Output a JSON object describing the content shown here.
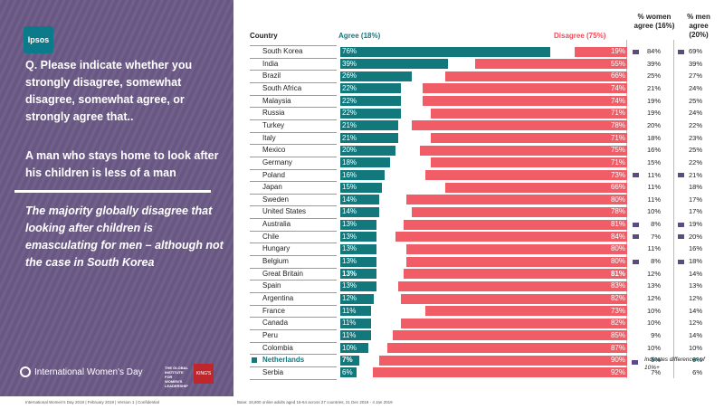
{
  "brand": {
    "logo_text": "Ipsos"
  },
  "question": "Q. Please indicate whether you strongly disagree, somewhat disagree, somewhat agree, or strongly agree that..",
  "statement": "A man who stays home to look after his children is less of a man",
  "summary": "The majority globally disagree that looking after children is emasculating for men – although not the case in South Korea",
  "iwd_label": "International Women's Day",
  "gi_logo_text": "THE GLOBAL INSTITUTE FOR WOMEN'S LEADERSHIP",
  "kings_logo_text": "KING'S",
  "footer_left": "International Women's Day 2019 | February 2019 | Version 1 | Confidential",
  "footer_base": "Base: 18,800 online adults aged 16-64 across 27 countries, 21 Dec 2018 - 4 Jan 2019",
  "note": "Indicates differences of 10%+",
  "colors": {
    "agree": "#13787c",
    "disagree": "#f05d67",
    "panel": "#6b5a86",
    "marker": "#5b4a86"
  },
  "chart_data": {
    "type": "bar",
    "title": "A man who stays home to look after his children is less of a man",
    "headers": {
      "country": "Country",
      "agree": "Agree (18%)",
      "disagree": "Disagree (75%)",
      "women": "% women agree (16%)",
      "men": "% men agree (20%)"
    },
    "categories": [
      "South Korea",
      "India",
      "Brazil",
      "South Africa",
      "Malaysia",
      "Russia",
      "Turkey",
      "Italy",
      "Mexico",
      "Germany",
      "Poland",
      "Japan",
      "Sweden",
      "United States",
      "Australia",
      "Chile",
      "Hungary",
      "Belgium",
      "Great Britain",
      "Spain",
      "Argentina",
      "France",
      "Canada",
      "Peru",
      "Colombia",
      "Netherlands",
      "Serbia"
    ],
    "agree_labels": [
      "76%",
      "39%",
      "26%",
      "22%",
      "22%",
      "22%",
      "21%",
      "21%",
      "20%",
      "18%",
      "16%",
      "15%",
      "14%",
      "14%",
      "13%",
      "13%",
      "13%",
      "13%",
      "13%",
      "13%",
      "12%",
      "11%",
      "11%",
      "11%",
      "10%",
      "7%",
      "6%"
    ],
    "disagree_labels": [
      "19%",
      "55%",
      "66%",
      "74%",
      "74%",
      "71%",
      "78%",
      "71%",
      "75%",
      "71%",
      "73%",
      "66%",
      "80%",
      "78%",
      "81%",
      "84%",
      "80%",
      "80%",
      "81%",
      "83%",
      "82%",
      "73%",
      "82%",
      "85%",
      "87%",
      "90%",
      "92%"
    ],
    "series": [
      {
        "name": "Agree",
        "values": [
          76,
          39,
          26,
          22,
          22,
          22,
          21,
          21,
          20,
          18,
          16,
          15,
          14,
          14,
          13,
          13,
          13,
          13,
          13,
          13,
          12,
          11,
          11,
          11,
          10,
          7,
          6
        ]
      },
      {
        "name": "Disagree",
        "values": [
          19,
          55,
          66,
          74,
          74,
          71,
          78,
          71,
          75,
          71,
          73,
          66,
          80,
          78,
          81,
          84,
          80,
          80,
          81,
          83,
          82,
          73,
          82,
          85,
          87,
          90,
          92
        ]
      }
    ],
    "women_agree": [
      "84%",
      "39%",
      "25%",
      "21%",
      "19%",
      "19%",
      "20%",
      "18%",
      "16%",
      "15%",
      "11%",
      "11%",
      "11%",
      "10%",
      "8%",
      "7%",
      "11%",
      "8%",
      "12%",
      "13%",
      "12%",
      "10%",
      "10%",
      "9%",
      "10%",
      "5%",
      "7%"
    ],
    "men_agree": [
      "69%",
      "39%",
      "27%",
      "24%",
      "25%",
      "24%",
      "22%",
      "23%",
      "25%",
      "22%",
      "21%",
      "18%",
      "17%",
      "17%",
      "19%",
      "20%",
      "16%",
      "18%",
      "14%",
      "13%",
      "12%",
      "14%",
      "12%",
      "14%",
      "10%",
      "9%",
      "6%"
    ],
    "significant_diff": [
      true,
      false,
      false,
      false,
      false,
      false,
      false,
      false,
      false,
      false,
      true,
      false,
      false,
      false,
      true,
      true,
      false,
      true,
      false,
      false,
      false,
      false,
      false,
      false,
      false,
      false,
      false
    ],
    "highlighted": [
      "Netherlands"
    ],
    "bold_values": [
      "Great Britain"
    ]
  }
}
